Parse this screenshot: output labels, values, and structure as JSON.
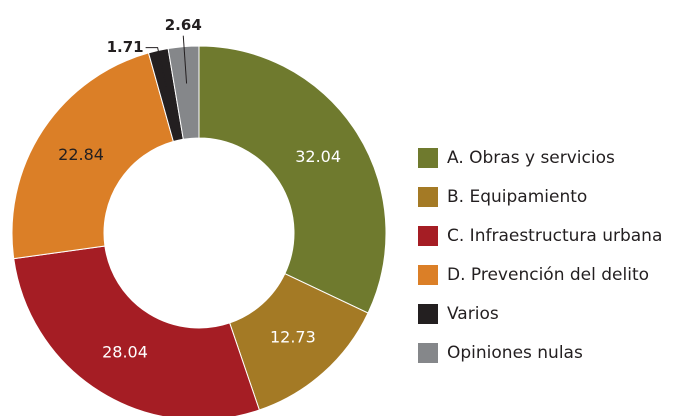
{
  "chart_data": {
    "type": "donut",
    "categories": [
      "A. Obras y servicios",
      "B. Equipamiento",
      "C. Infraestructura urbana",
      "D. Prevención del delito",
      "Varios",
      "Opiniones nulas"
    ],
    "values": [
      32.04,
      12.73,
      28.04,
      22.84,
      1.71,
      2.64
    ],
    "colors": [
      "#6f7a2e",
      "#a47a25",
      "#a51d24",
      "#db7f27",
      "#231f20",
      "#85878a"
    ],
    "legend": "right"
  }
}
